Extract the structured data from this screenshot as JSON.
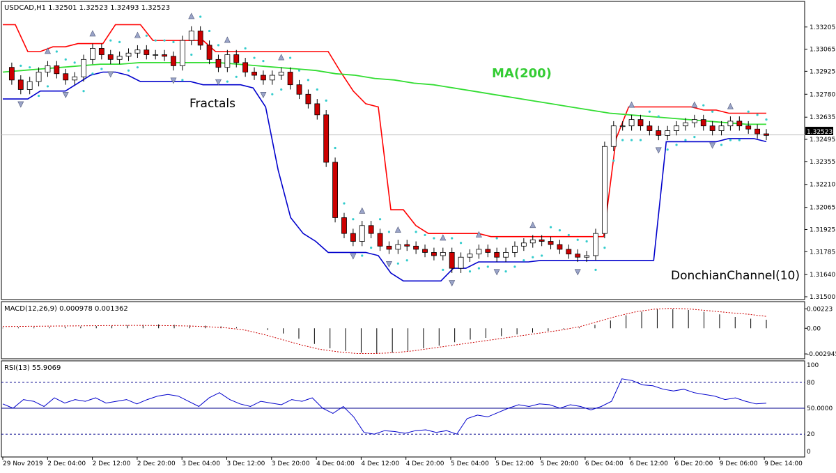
{
  "chart_data": {
    "type": "candlestick",
    "main_panel": {
      "header": "USDCAD,H1  1.32501 1.32523 1.32493 1.32523",
      "y_ticks": [
        "1.33205",
        "1.33065",
        "1.32925",
        "1.32780",
        "1.32635",
        "1.32495",
        "1.32355",
        "1.32210",
        "1.32065",
        "1.31925",
        "1.31785",
        "1.31640",
        "1.31500"
      ],
      "ylim": [
        1.315,
        1.3327
      ],
      "current_price": "1.32523",
      "annotations": [
        "Fractals",
        "MA(200)",
        "DonchianChannel(10)"
      ]
    },
    "macd_panel": {
      "header": "MACD(12,26,9) 0.000978 0.001362",
      "y_ticks": [
        "0.00223",
        "0.00",
        "-0.002945"
      ],
      "ylim": [
        -0.0031,
        0.0025
      ]
    },
    "rsi_panel": {
      "header": "RSI(13) 55.9069",
      "y_ticks": [
        "100",
        "80",
        "50.0000",
        "20",
        "0"
      ],
      "levels": [
        80,
        50,
        20
      ],
      "ylim": [
        0,
        100
      ]
    },
    "x_labels": [
      "29 Nov 2019",
      "2 Dec 04:00",
      "2 Dec 12:00",
      "2 Dec 20:00",
      "3 Dec 04:00",
      "3 Dec 12:00",
      "3 Dec 20:00",
      "4 Dec 04:00",
      "4 Dec 12:00",
      "4 Dec 20:00",
      "5 Dec 04:00",
      "5 Dec 12:00",
      "5 Dec 20:00",
      "6 Dec 04:00",
      "6 Dec 12:00",
      "6 Dec 20:00",
      "9 Dec 06:00",
      "9 Dec 14:00"
    ],
    "price_series": [
      1.3295,
      1.3287,
      1.3281,
      1.3286,
      1.3292,
      1.3296,
      1.3291,
      1.3287,
      1.3289,
      1.33,
      1.3307,
      1.3303,
      1.33,
      1.3302,
      1.3304,
      1.3306,
      1.3303,
      1.3303,
      1.3302,
      1.3296,
      1.3312,
      1.3318,
      1.3309,
      1.33,
      1.3295,
      1.3303,
      1.3298,
      1.3292,
      1.329,
      1.3287,
      1.329,
      1.3292,
      1.3284,
      1.3278,
      1.3272,
      1.3265,
      1.3235,
      1.32,
      1.319,
      1.3185,
      1.3195,
      1.319,
      1.3182,
      1.318,
      1.3183,
      1.3182,
      1.318,
      1.3178,
      1.3176,
      1.3178,
      1.3168,
      1.3175,
      1.3177,
      1.318,
      1.3178,
      1.3175,
      1.3178,
      1.3182,
      1.3184,
      1.3186,
      1.3185,
      1.3183,
      1.318,
      1.3177,
      1.3175,
      1.3176,
      1.319,
      1.3245,
      1.3258,
      1.3258,
      1.3262,
      1.3258,
      1.3255,
      1.3252,
      1.3255,
      1.3258,
      1.326,
      1.3262,
      1.3258,
      1.3255,
      1.3258,
      1.3261,
      1.3258,
      1.3256,
      1.3253,
      1.3252
    ],
    "donchian_upper": [
      1.3322,
      1.3322,
      1.3305,
      1.3305,
      1.3308,
      1.3308,
      1.331,
      1.331,
      1.331,
      1.3322,
      1.3322,
      1.3322,
      1.3312,
      1.3312,
      1.3312,
      1.3312,
      1.3312,
      1.3305,
      1.3305,
      1.3305,
      1.3305,
      1.3305,
      1.3305,
      1.3305,
      1.3305,
      1.3305,
      1.3305,
      1.3292,
      1.328,
      1.3272,
      1.327,
      1.3205,
      1.3205,
      1.3195,
      1.319,
      1.319,
      1.319,
      1.319,
      1.319,
      1.3188,
      1.3188,
      1.3188,
      1.3188,
      1.3188,
      1.3188,
      1.3188,
      1.3188,
      1.3188,
      1.3188,
      1.325,
      1.327,
      1.327,
      1.327,
      1.327,
      1.327,
      1.327,
      1.3268,
      1.3268,
      1.3266,
      1.3266,
      1.3266,
      1.3266
    ],
    "donchian_lower": [
      1.3275,
      1.3275,
      1.3275,
      1.328,
      1.328,
      1.328,
      1.3285,
      1.329,
      1.3292,
      1.3292,
      1.329,
      1.3286,
      1.3286,
      1.3286,
      1.3286,
      1.3286,
      1.3284,
      1.3284,
      1.3284,
      1.3284,
      1.3282,
      1.327,
      1.323,
      1.32,
      1.319,
      1.3185,
      1.3178,
      1.3178,
      1.3178,
      1.3178,
      1.3176,
      1.3165,
      1.316,
      1.316,
      1.316,
      1.316,
      1.3168,
      1.3168,
      1.3172,
      1.3172,
      1.3172,
      1.3172,
      1.3172,
      1.3173,
      1.3173,
      1.3173,
      1.3173,
      1.3173,
      1.3173,
      1.3173,
      1.3173,
      1.3173,
      1.3173,
      1.3248,
      1.3248,
      1.3248,
      1.3248,
      1.3248,
      1.325,
      1.325,
      1.325,
      1.3248
    ],
    "ma200": [
      1.3292,
      1.3293,
      1.3294,
      1.3295,
      1.3296,
      1.3297,
      1.3297,
      1.3298,
      1.3298,
      1.3298,
      1.3298,
      1.3298,
      1.3297,
      1.3296,
      1.3295,
      1.3294,
      1.3293,
      1.3291,
      1.329,
      1.3288,
      1.3287,
      1.3285,
      1.3284,
      1.3282,
      1.328,
      1.3278,
      1.3276,
      1.3274,
      1.3272,
      1.327,
      1.3268,
      1.3266,
      1.3265,
      1.3264,
      1.3263,
      1.3262,
      1.3261,
      1.326,
      1.3259,
      1.3259
    ],
    "macd_histogram": [
      5e-05,
      0.0001,
      0.00012,
      0.00015,
      0.00018,
      0.0002,
      0.00025,
      0.0003,
      0.00035,
      0.0004,
      0.00045,
      0.0004,
      0.00035,
      0.0003,
      0.00022,
      0.00012,
      0.0,
      -0.0002,
      -0.0006,
      -0.0012,
      -0.0018,
      -0.0023,
      -0.0026,
      -0.0028,
      -0.0029,
      -0.0028,
      -0.0026,
      -0.0023,
      -0.002,
      -0.0016,
      -0.0013,
      -0.0011,
      -0.0009,
      -0.0007,
      -0.0005,
      -0.0003,
      -0.0001,
      0.0001,
      0.0004,
      0.0009,
      0.0015,
      0.0019,
      0.0022,
      0.0022,
      0.0021,
      0.0019,
      0.0016,
      0.0013,
      0.0011,
      0.00098
    ],
    "macd_signal": [
      0.0002,
      0.00022,
      0.00024,
      0.00026,
      0.00028,
      0.0003,
      0.00032,
      0.00033,
      0.00032,
      0.0003,
      0.00026,
      0.00018,
      5e-05,
      -0.0002,
      -0.0007,
      -0.0013,
      -0.0019,
      -0.0024,
      -0.0027,
      -0.0029,
      -0.0029,
      -0.0028,
      -0.0026,
      -0.0023,
      -0.002,
      -0.0017,
      -0.0014,
      -0.0011,
      -0.0008,
      -0.0005,
      -0.0002,
      0.0002,
      0.0008,
      0.0014,
      0.0019,
      0.0022,
      0.0023,
      0.0022,
      0.002,
      0.0018,
      0.00162,
      0.001362
    ],
    "rsi_values": [
      55,
      50,
      60,
      58,
      52,
      62,
      56,
      60,
      58,
      62,
      56,
      58,
      60,
      55,
      60,
      64,
      66,
      64,
      58,
      52,
      62,
      68,
      60,
      55,
      52,
      58,
      56,
      54,
      60,
      58,
      62,
      50,
      44,
      52,
      40,
      22,
      20,
      24,
      23,
      21,
      24,
      25,
      22,
      24,
      20,
      38,
      42,
      40,
      45,
      50,
      54,
      52,
      55,
      54,
      50,
      54,
      52,
      48,
      52,
      58,
      84,
      82,
      77,
      76,
      72,
      70,
      72,
      68,
      66,
      64,
      60,
      62,
      58,
      55,
      55.9
    ]
  }
}
